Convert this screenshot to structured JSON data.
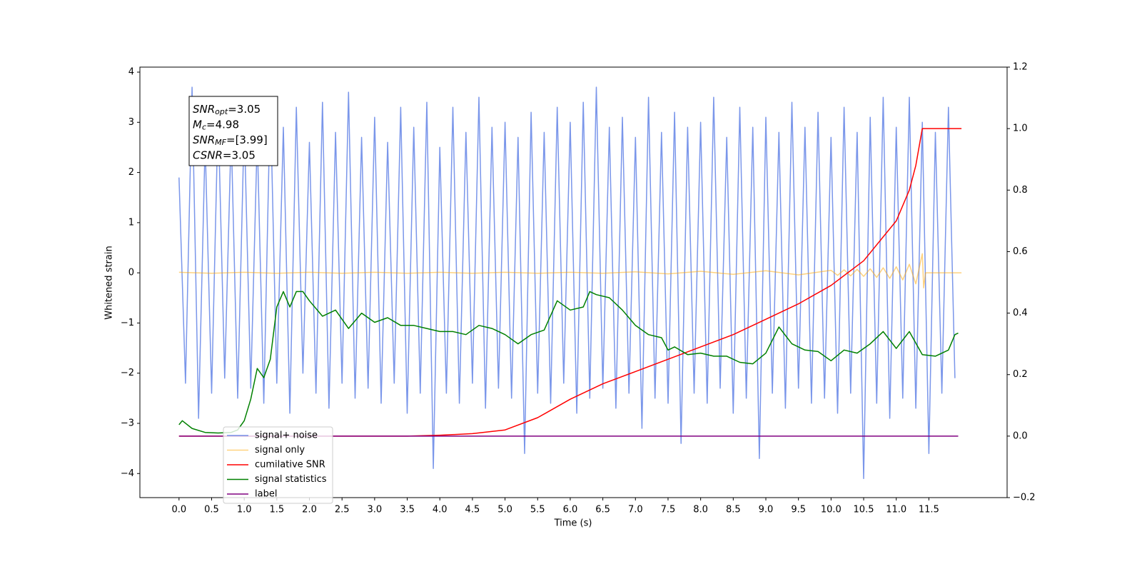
{
  "chart_data": {
    "type": "line",
    "xlabel": "Time (s)",
    "ylabel": "Whitened strain",
    "xlim": [
      -0.6,
      12.7
    ],
    "ylim": [
      -4.48,
      4.1
    ],
    "y2lim": [
      -0.2,
      1.2
    ],
    "xticks": [
      {
        "value": 0,
        "label": "0.0"
      },
      0.5,
      {
        "value": 1,
        "label": "1.0"
      },
      1.5,
      {
        "value": 2,
        "label": "2.0"
      },
      2.5,
      {
        "value": 3,
        "label": "3.0"
      },
      3.5,
      {
        "value": 4,
        "label": "4.0"
      },
      4.5,
      {
        "value": 5,
        "label": "5.0"
      },
      5.5,
      {
        "value": 6,
        "label": "6.0"
      },
      6.5,
      {
        "value": 7,
        "label": "7.0"
      },
      7.5,
      {
        "value": 8,
        "label": "8.0"
      },
      8.5,
      {
        "value": 9,
        "label": "9.0"
      },
      9.5,
      {
        "value": 10,
        "label": "10.0"
      },
      10.5,
      {
        "value": 11,
        "label": "11.0"
      },
      11.5
    ],
    "yticks": [
      {
        "value": -4,
        "label": "−4"
      },
      {
        "value": -3,
        "label": "−3"
      },
      {
        "value": -2,
        "label": "−2"
      },
      {
        "value": -1,
        "label": "−1"
      },
      0,
      1,
      2,
      3,
      4
    ],
    "y2ticks": [
      {
        "value": -0.2,
        "label": "−0.2"
      },
      {
        "value": 0,
        "label": "0.0"
      },
      0.2,
      0.4,
      0.6,
      0.8,
      {
        "value": 1,
        "label": "1.0"
      },
      1.2
    ],
    "legend": "lower left",
    "annotation": [
      {
        "text": "SNR",
        "sub": "opt",
        "rest": "=3.05"
      },
      {
        "text": "M",
        "sub": "c",
        "rest": "=4.98"
      },
      {
        "text": "SNR",
        "sub": "MF",
        "rest": "=[3.99]"
      },
      {
        "text": "CSNR",
        "rest": "=3.05"
      }
    ],
    "series": [
      {
        "name": "signal+ noise",
        "color": "#4169e1",
        "opacity": 0.7,
        "x": [
          0,
          0.1,
          0.2,
          0.3,
          0.4,
          0.5,
          0.6,
          0.7,
          0.8,
          0.9,
          1,
          1.1,
          1.2,
          1.3,
          1.4,
          1.5,
          1.6,
          1.7,
          1.8,
          1.9,
          2,
          2.1,
          2.2,
          2.3,
          2.4,
          2.5,
          2.6,
          2.7,
          2.8,
          2.9,
          3,
          3.1,
          3.2,
          3.3,
          3.4,
          3.5,
          3.6,
          3.7,
          3.8,
          3.9,
          4,
          4.1,
          4.2,
          4.3,
          4.4,
          4.5,
          4.6,
          4.7,
          4.8,
          4.9,
          5,
          5.1,
          5.2,
          5.3,
          5.4,
          5.5,
          5.6,
          5.7,
          5.8,
          5.9,
          6,
          6.1,
          6.2,
          6.3,
          6.4,
          6.5,
          6.6,
          6.7,
          6.8,
          6.9,
          7,
          7.1,
          7.2,
          7.3,
          7.4,
          7.5,
          7.6,
          7.7,
          7.8,
          7.9,
          8,
          8.1,
          8.2,
          8.3,
          8.4,
          8.5,
          8.6,
          8.7,
          8.8,
          8.9,
          9,
          9.1,
          9.2,
          9.3,
          9.4,
          9.5,
          9.6,
          9.7,
          9.8,
          9.9,
          10,
          10.1,
          10.2,
          10.3,
          10.4,
          10.5,
          10.6,
          10.7,
          10.8,
          10.9,
          11,
          11.1,
          11.2,
          11.3,
          11.4,
          11.5,
          11.6,
          11.7,
          11.8,
          11.9
        ],
        "values": [
          1.9,
          -2.2,
          3.7,
          -2.9,
          2.6,
          -2.4,
          3.2,
          -2.1,
          2.8,
          -2.5,
          3.0,
          -2.3,
          2.7,
          -2.6,
          3.5,
          -2.2,
          2.9,
          -2.8,
          3.3,
          -2.0,
          2.6,
          -2.4,
          3.4,
          -2.7,
          2.8,
          -2.2,
          3.6,
          -2.5,
          2.7,
          -2.3,
          3.1,
          -2.6,
          2.6,
          -2.2,
          3.3,
          -2.8,
          2.9,
          -2.4,
          3.4,
          -3.9,
          2.5,
          -2.4,
          3.3,
          -2.6,
          2.8,
          -2.2,
          3.5,
          -2.7,
          2.9,
          -2.3,
          3.0,
          -2.5,
          2.7,
          -3.6,
          3.2,
          -2.4,
          2.8,
          -2.6,
          3.3,
          -2.2,
          3.0,
          -2.8,
          3.4,
          -2.5,
          3.7,
          -2.3,
          2.9,
          -2.7,
          3.1,
          -2.4,
          2.7,
          -3.1,
          3.5,
          -2.5,
          2.8,
          -2.6,
          3.2,
          -3.4,
          2.9,
          -2.4,
          3.0,
          -2.6,
          3.5,
          -2.3,
          2.7,
          -2.8,
          3.3,
          -2.5,
          2.9,
          -3.7,
          3.1,
          -2.4,
          2.8,
          -2.7,
          3.4,
          -2.3,
          2.9,
          -2.6,
          3.2,
          -2.5,
          2.7,
          -2.8,
          3.3,
          -2.4,
          2.8,
          -4.1,
          3.1,
          -2.6,
          3.5,
          -2.9,
          2.9,
          -2.5,
          3.5,
          -2.7,
          3.0,
          -3.6,
          2.8,
          -2.4,
          3.3,
          -2.1
        ]
      },
      {
        "name": "signal only",
        "color": "#ffa500",
        "opacity": 0.5,
        "x": [
          0,
          0.5,
          1,
          1.5,
          2,
          2.5,
          3,
          3.5,
          4,
          4.5,
          5,
          5.5,
          6,
          6.5,
          7,
          7.5,
          8,
          8.5,
          9,
          9.5,
          10,
          10.1,
          10.2,
          10.3,
          10.4,
          10.5,
          10.6,
          10.7,
          10.8,
          10.9,
          11,
          11.1,
          11.2,
          11.3,
          11.4,
          11.42,
          11.45,
          12
        ],
        "values": [
          0.01,
          -0.01,
          0.01,
          -0.01,
          0.01,
          -0.01,
          0.01,
          -0.01,
          0.01,
          -0.01,
          0.01,
          -0.01,
          0.01,
          -0.01,
          0.02,
          -0.02,
          0.03,
          -0.03,
          0.04,
          -0.04,
          0.05,
          -0.05,
          0.06,
          -0.06,
          0.07,
          -0.07,
          0.08,
          -0.09,
          0.1,
          -0.11,
          0.12,
          -0.14,
          0.17,
          -0.22,
          0.38,
          -0.3,
          0,
          0
        ]
      },
      {
        "name": "cumilative SNR",
        "color": "#ff0000",
        "axis": "y2",
        "x": [
          0,
          3.5,
          4,
          4.5,
          5,
          5.5,
          6,
          6.5,
          7,
          7.5,
          8,
          8.5,
          9,
          9.5,
          10,
          10.5,
          11,
          11.2,
          11.3,
          11.4,
          12
        ],
        "values": [
          0,
          0,
          0.003,
          0.008,
          0.02,
          0.06,
          0.12,
          0.17,
          0.21,
          0.25,
          0.29,
          0.33,
          0.38,
          0.43,
          0.49,
          0.57,
          0.7,
          0.8,
          0.88,
          1.0,
          1.0
        ]
      },
      {
        "name": "signal statistics",
        "color": "#008000",
        "axis": "y2",
        "x": [
          0,
          0.05,
          0.2,
          0.4,
          0.6,
          0.8,
          0.9,
          1,
          1.1,
          1.2,
          1.3,
          1.4,
          1.5,
          1.6,
          1.7,
          1.8,
          1.9,
          2,
          2.2,
          2.4,
          2.6,
          2.8,
          3,
          3.2,
          3.4,
          3.6,
          3.8,
          4,
          4.2,
          4.4,
          4.6,
          4.8,
          5,
          5.2,
          5.4,
          5.6,
          5.8,
          6,
          6.2,
          6.3,
          6.4,
          6.6,
          6.8,
          7,
          7.2,
          7.4,
          7.5,
          7.6,
          7.8,
          8,
          8.2,
          8.4,
          8.6,
          8.8,
          9,
          9.2,
          9.4,
          9.6,
          9.8,
          10,
          10.2,
          10.4,
          10.6,
          10.8,
          11,
          11.2,
          11.4,
          11.6,
          11.8,
          11.9,
          11.95
        ],
        "values": [
          0.037,
          0.05,
          0.025,
          0.012,
          0.01,
          0.012,
          0.02,
          0.05,
          0.12,
          0.22,
          0.19,
          0.25,
          0.42,
          0.47,
          0.42,
          0.47,
          0.47,
          0.44,
          0.39,
          0.41,
          0.35,
          0.4,
          0.37,
          0.385,
          0.36,
          0.36,
          0.35,
          0.34,
          0.34,
          0.33,
          0.36,
          0.35,
          0.33,
          0.3,
          0.33,
          0.345,
          0.44,
          0.41,
          0.42,
          0.47,
          0.46,
          0.45,
          0.41,
          0.36,
          0.33,
          0.32,
          0.28,
          0.29,
          0.265,
          0.27,
          0.26,
          0.26,
          0.24,
          0.235,
          0.27,
          0.355,
          0.3,
          0.28,
          0.275,
          0.245,
          0.28,
          0.27,
          0.3,
          0.34,
          0.285,
          0.34,
          0.265,
          0.26,
          0.28,
          0.33,
          0.335
        ]
      },
      {
        "name": "label",
        "color": "#800080",
        "axis": "y2",
        "x": [
          0,
          11.95
        ],
        "values": [
          0,
          0
        ]
      }
    ]
  }
}
